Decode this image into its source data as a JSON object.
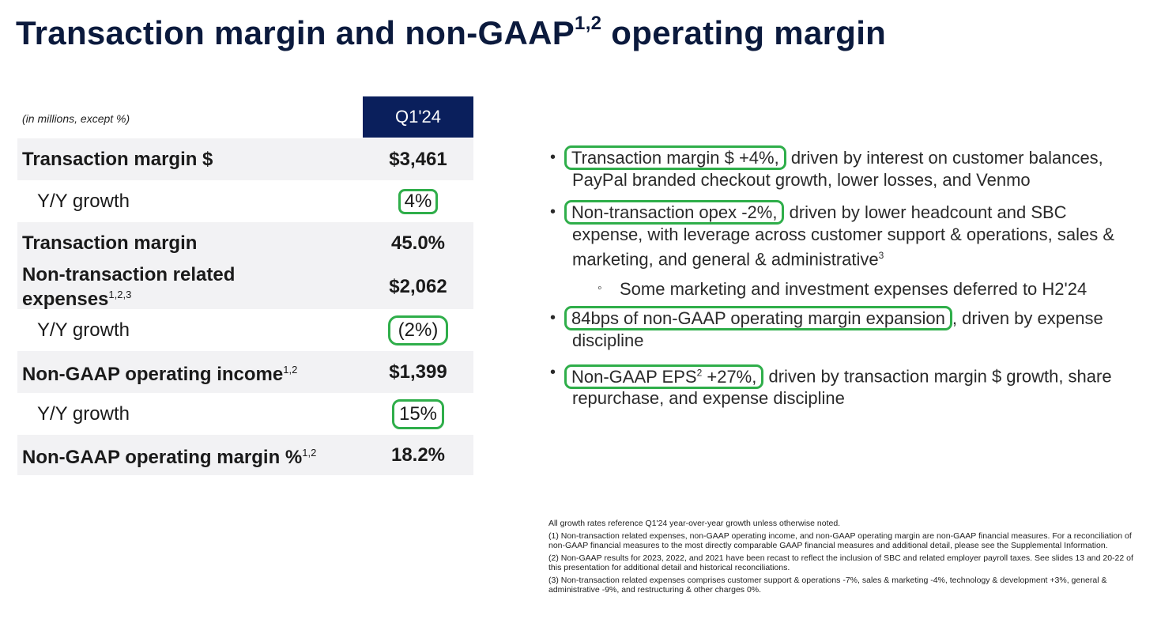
{
  "title": {
    "text": "Transaction margin and non-GAAP",
    "sup": "1,2",
    "text2": "operating margin"
  },
  "table": {
    "units": "(in millions, except %)",
    "column": "Q1'24",
    "rows": [
      {
        "label": "Transaction margin $",
        "sup": "",
        "value": "$3,461"
      },
      {
        "label": "Y/Y growth",
        "sup": "",
        "value": "4%"
      },
      {
        "label": "Transaction margin",
        "sup": "",
        "value": "45.0%"
      },
      {
        "label": "Non-transaction related expenses",
        "sup": "1,2,3",
        "value": "$2,062"
      },
      {
        "label": "Y/Y growth",
        "sup": "",
        "value": "(2%)"
      },
      {
        "label": "Non-GAAP operating income",
        "sup": "1,2",
        "value": "$1,399"
      },
      {
        "label": "Y/Y growth",
        "sup": "",
        "value": "15%"
      },
      {
        "label": "Non-GAAP operating margin %",
        "sup": "1,2",
        "value": "18.2%"
      }
    ]
  },
  "bullets": [
    {
      "highlight": "Transaction margin $ +4%,",
      "text": " driven by interest on customer balances, PayPal branded checkout growth, lower losses, and Venmo"
    },
    {
      "highlight": "Non-transaction opex -2%,",
      "text": " driven by lower headcount and SBC expense, with leverage across customer support & operations, sales & marketing, and general & administrative",
      "sup": "3"
    },
    {
      "sub": "Some marketing and investment expenses deferred to H2'24"
    },
    {
      "highlight": "84bps of non-GAAP operating margin expansion",
      "text": ", driven by expense discipline"
    },
    {
      "highlight_a": "Non-GAAP EPS",
      "highlight_sup": "2",
      "highlight_b": " +27%,",
      "text": " driven by transaction margin $ growth, share repurchase, and expense discipline"
    }
  ],
  "footnotes": [
    "All growth rates reference Q1'24 year-over-year growth unless otherwise noted.",
    "(1) Non-transaction related expenses, non-GAAP operating income, and non-GAAP operating margin are non-GAAP financial measures. For a reconciliation of non-GAAP financial measures to the most directly comparable GAAP financial measures and additional detail, please see the Supplemental Information.",
    "(2) Non-GAAP results for 2023, 2022, and 2021 have been recast to reflect the inclusion of SBC and related employer payroll taxes. See slides 13 and 20-22 of this presentation for additional detail and historical reconciliations.",
    "(3) Non-transaction related expenses comprises customer support & operations -7%, sales & marketing -4%, technology & development +3%, general & administrative -9%, and restructuring & other charges 0%."
  ],
  "colors": {
    "navy": "#0a1f5c",
    "title": "#0b1a3d",
    "highlight_green": "#2fae4a",
    "row_shade": "#f2f2f4"
  }
}
